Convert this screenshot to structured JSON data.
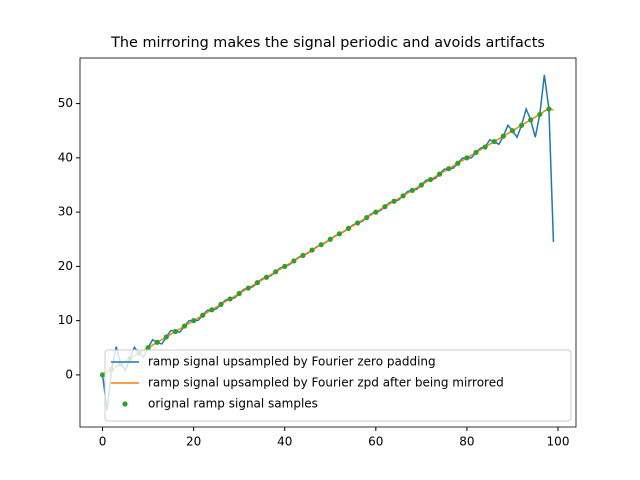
{
  "chart_data": {
    "type": "line",
    "title": "The mirroring makes the signal periodic and avoids artifacts",
    "xlim": [
      -4.95,
      103.95
    ],
    "ylim": [
      -9.6,
      58.4
    ],
    "xticks": [
      0,
      20,
      40,
      60,
      80,
      100
    ],
    "yticks": [
      0,
      10,
      20,
      30,
      40,
      50
    ],
    "legend": "lower left",
    "series": [
      {
        "name": "ramp signal upsampled by Fourier zero padding",
        "color": "#1f77b4",
        "kind": "line",
        "x": [
          0,
          1,
          2,
          3,
          4,
          5,
          6,
          7,
          8,
          9,
          10,
          11,
          12,
          13,
          14,
          15,
          16,
          17,
          18,
          19,
          20,
          21,
          22,
          23,
          24,
          25,
          26,
          27,
          28,
          29,
          30,
          31,
          32,
          33,
          34,
          35,
          36,
          37,
          38,
          39,
          40,
          41,
          42,
          43,
          44,
          45,
          46,
          47,
          48,
          49,
          50,
          51,
          52,
          53,
          54,
          55,
          56,
          57,
          58,
          59,
          60,
          61,
          62,
          63,
          64,
          65,
          66,
          67,
          68,
          69,
          70,
          71,
          72,
          73,
          74,
          75,
          76,
          77,
          78,
          79,
          80,
          81,
          82,
          83,
          84,
          85,
          86,
          87,
          88,
          89,
          90,
          91,
          92,
          93,
          94,
          95,
          96,
          97,
          98,
          99
        ],
        "values": [
          0,
          -6.5,
          1,
          5.2,
          2,
          0.8,
          3,
          5.1,
          4,
          3.3,
          5,
          6.5,
          6,
          5.7,
          7,
          8.2,
          8,
          7.9,
          9,
          10,
          10,
          10.05,
          11,
          11.9,
          12,
          12.15,
          13,
          13.8,
          14,
          14.2,
          15,
          15.75,
          16,
          16.25,
          17,
          17.7,
          18,
          18.3,
          19,
          19.7,
          20,
          20.3,
          21,
          21.65,
          22,
          22.4,
          23,
          23.6,
          24,
          24.4,
          25,
          25.6,
          26,
          26.4,
          27,
          27.65,
          28,
          28.3,
          29,
          29.7,
          30,
          30.3,
          31,
          31.75,
          32,
          32.25,
          33,
          33.8,
          34,
          34.2,
          35,
          35.85,
          36,
          36.15,
          37,
          37.9,
          38,
          38.1,
          39,
          39.95,
          40,
          40,
          41,
          41.8,
          42,
          43.3,
          43,
          42.5,
          44,
          46,
          45,
          43.8,
          46,
          49,
          47,
          43.8,
          48,
          55.3,
          49,
          24.5
        ]
      },
      {
        "name": "ramp signal upsampled by Fourier zpd after being mirrored",
        "color": "#ff7f0e",
        "kind": "line",
        "x": [
          0,
          1,
          2,
          3,
          4,
          5,
          6,
          7,
          8,
          9,
          10,
          11,
          12,
          13,
          14,
          15,
          16,
          17,
          18,
          19,
          20,
          21,
          22,
          23,
          24,
          25,
          26,
          27,
          28,
          29,
          30,
          31,
          32,
          33,
          34,
          35,
          36,
          37,
          38,
          39,
          40,
          41,
          42,
          43,
          44,
          45,
          46,
          47,
          48,
          49,
          50,
          51,
          52,
          53,
          54,
          55,
          56,
          57,
          58,
          59,
          60,
          61,
          62,
          63,
          64,
          65,
          66,
          67,
          68,
          69,
          70,
          71,
          72,
          73,
          74,
          75,
          76,
          77,
          78,
          79,
          80,
          81,
          82,
          83,
          84,
          85,
          86,
          87,
          88,
          89,
          90,
          91,
          92,
          93,
          94,
          95,
          96,
          97,
          98,
          99
        ],
        "values": [
          0.2,
          0.5,
          1,
          1.5,
          2,
          2.5,
          3,
          3.5,
          4,
          4.5,
          5,
          5.5,
          6,
          6.5,
          7,
          7.5,
          8,
          8.5,
          9,
          9.5,
          10,
          10.5,
          11,
          11.5,
          12,
          12.5,
          13,
          13.5,
          14,
          14.5,
          15,
          15.5,
          16,
          16.5,
          17,
          17.5,
          18,
          18.5,
          19,
          19.5,
          20,
          20.5,
          21,
          21.5,
          22,
          22.5,
          23,
          23.5,
          24,
          24.5,
          25,
          25.5,
          26,
          26.5,
          27,
          27.5,
          28,
          28.5,
          29,
          29.5,
          30,
          30.5,
          31,
          31.5,
          32,
          32.5,
          33,
          33.5,
          34,
          34.5,
          35,
          35.5,
          36,
          36.5,
          37,
          37.5,
          38,
          38.5,
          39,
          39.5,
          40,
          40.5,
          41,
          41.5,
          42,
          42.5,
          43,
          43.5,
          44,
          44.5,
          45,
          45.5,
          46,
          46.5,
          47,
          47.5,
          48,
          48.6,
          49.1,
          48.8
        ]
      },
      {
        "name": "orignal ramp signal samples",
        "color": "#2ca02c",
        "kind": "points",
        "x": [
          0,
          2,
          4,
          6,
          8,
          10,
          12,
          14,
          16,
          18,
          20,
          22,
          24,
          26,
          28,
          30,
          32,
          34,
          36,
          38,
          40,
          42,
          44,
          46,
          48,
          50,
          52,
          54,
          56,
          58,
          60,
          62,
          64,
          66,
          68,
          70,
          72,
          74,
          76,
          78,
          80,
          82,
          84,
          86,
          88,
          90,
          92,
          94,
          96,
          98
        ],
        "values": [
          0,
          1,
          2,
          3,
          4,
          5,
          6,
          7,
          8,
          9,
          10,
          11,
          12,
          13,
          14,
          15,
          16,
          17,
          18,
          19,
          20,
          21,
          22,
          23,
          24,
          25,
          26,
          27,
          28,
          29,
          30,
          31,
          32,
          33,
          34,
          35,
          36,
          37,
          38,
          39,
          40,
          41,
          42,
          43,
          44,
          45,
          46,
          47,
          48,
          49
        ]
      }
    ]
  }
}
